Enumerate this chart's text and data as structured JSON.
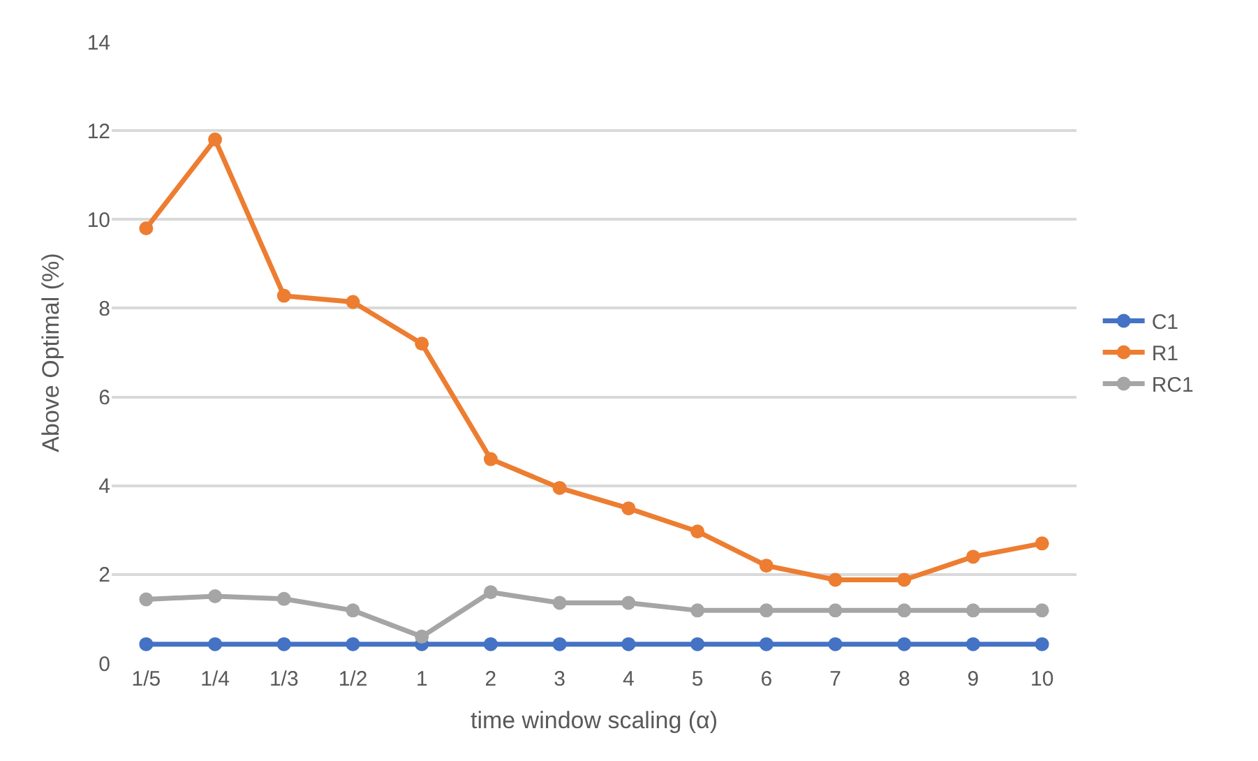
{
  "chart_data": {
    "type": "line",
    "xlabel": "time window scaling (α)",
    "ylabel": "Above Optimal (%)",
    "categories": [
      "1/5",
      "1/4",
      "1/3",
      "1/2",
      "1",
      "2",
      "3",
      "4",
      "5",
      "6",
      "7",
      "8",
      "9",
      "10"
    ],
    "series": [
      {
        "name": "C1",
        "color": "#4472c4",
        "values": [
          0.43,
          0.43,
          0.43,
          0.43,
          0.43,
          0.43,
          0.43,
          0.43,
          0.43,
          0.43,
          0.43,
          0.43,
          0.43,
          0.43
        ]
      },
      {
        "name": "R1",
        "color": "#ed7d31",
        "values": [
          9.8,
          11.8,
          8.28,
          8.14,
          7.2,
          4.6,
          3.95,
          3.49,
          2.97,
          2.2,
          1.88,
          1.88,
          2.4,
          2.7
        ]
      },
      {
        "name": "RC1",
        "color": "#a5a5a5",
        "values": [
          1.44,
          1.51,
          1.45,
          1.19,
          0.6,
          1.6,
          1.36,
          1.36,
          1.19,
          1.19,
          1.19,
          1.19,
          1.19,
          1.19
        ]
      }
    ],
    "ylim": [
      0,
      14
    ],
    "yticks": [
      0,
      2,
      4,
      6,
      8,
      10,
      12,
      14
    ],
    "grid": "y",
    "legend": "right",
    "marker": "circle",
    "line_style": "solid"
  }
}
